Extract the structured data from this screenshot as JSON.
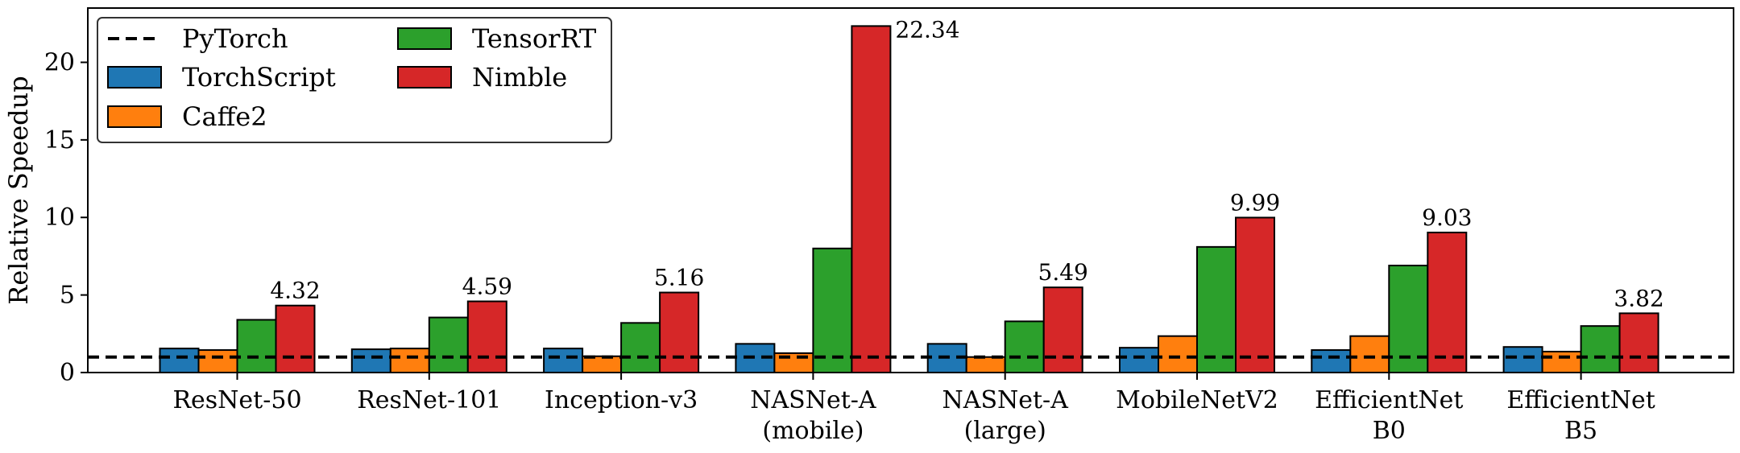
{
  "chart_data": {
    "type": "bar",
    "ylabel": "Relative Speedup",
    "ylim": [
      0,
      23.5
    ],
    "yticks": [
      "0",
      "5",
      "10",
      "15",
      "20"
    ],
    "categories": [
      [
        "ResNet-50"
      ],
      [
        "ResNet-101"
      ],
      [
        "Inception-v3"
      ],
      [
        "NASNet-A",
        "(mobile)"
      ],
      [
        "NASNet-A",
        "(large)"
      ],
      [
        "MobileNetV2"
      ],
      [
        "EfficientNet",
        "B0"
      ],
      [
        "EfficientNet",
        "B5"
      ]
    ],
    "baseline": {
      "name": "PyTorch",
      "value": 1.0,
      "style": "dashed",
      "color": "#000000"
    },
    "series": [
      {
        "name": "TorchScript",
        "color": "#1f77b4",
        "values": [
          1.55,
          1.5,
          1.55,
          1.85,
          1.85,
          1.6,
          1.45,
          1.65
        ]
      },
      {
        "name": "Caffe2",
        "color": "#ff7f0e",
        "values": [
          1.45,
          1.55,
          1.05,
          1.25,
          1.0,
          2.35,
          2.35,
          1.35
        ]
      },
      {
        "name": "TensorRT",
        "color": "#2ca02c",
        "values": [
          3.4,
          3.55,
          3.2,
          8.0,
          3.3,
          8.1,
          6.9,
          3.0
        ]
      },
      {
        "name": "Nimble",
        "color": "#d62728",
        "values": [
          4.32,
          4.59,
          5.16,
          22.34,
          5.49,
          9.99,
          9.03,
          3.82
        ]
      }
    ],
    "data_labels": [
      "4.32",
      "4.59",
      "5.16",
      "22.34",
      "5.49",
      "9.99",
      "9.03",
      "3.82"
    ],
    "legend": {
      "placement": "top-left",
      "columns": [
        [
          "PyTorch",
          "TorchScript",
          "Caffe2"
        ],
        [
          "TensorRT",
          "Nimble"
        ]
      ]
    },
    "grid": false
  }
}
